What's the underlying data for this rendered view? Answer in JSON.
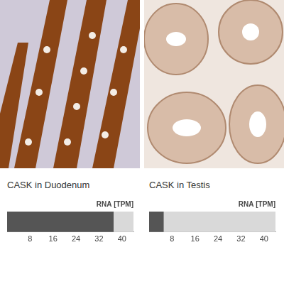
{
  "chart_data": [
    {
      "type": "bar",
      "orientation": "horizontal",
      "title": "CASK in Duodenum",
      "xlabel": "RNA [TPM]",
      "categories": [
        null
      ],
      "values": [
        37
      ],
      "color": "#555555",
      "xlim": [
        0,
        44
      ],
      "xticks": [
        8,
        16,
        24,
        32,
        40
      ],
      "grid": false,
      "tick_labels": "x"
    },
    {
      "type": "bar",
      "orientation": "horizontal",
      "title": "CASK in Testis",
      "xlabel": "RNA [TPM]",
      "categories": [
        null
      ],
      "values": [
        5
      ],
      "color": "#555555",
      "xlim": [
        0,
        44
      ],
      "xticks": [
        8,
        16,
        24,
        32,
        40
      ],
      "grid": false,
      "tick_labels": "x"
    }
  ]
}
